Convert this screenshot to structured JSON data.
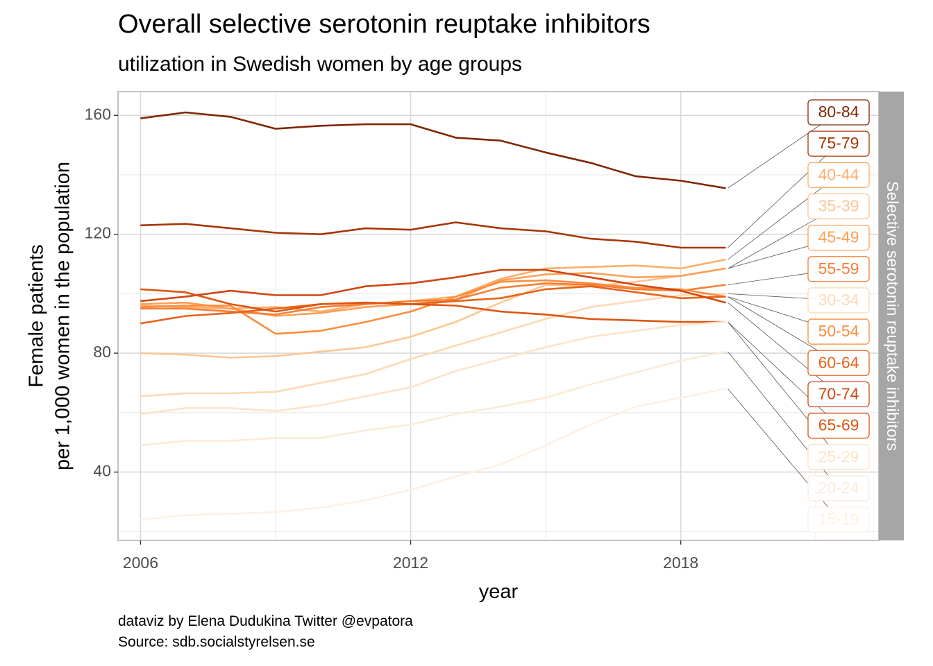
{
  "title": "Overall selective serotonin reuptake inhibitors",
  "subtitle": "utilization in Swedish women by age groups",
  "caption_lines": [
    "dataviz by Elena Dudukina Twitter @evpatora",
    "Source: sdb.socialstyrelsen.se"
  ],
  "colors": {
    "panel_border": "#b3b3b3",
    "grid_major": "#d9d9d9",
    "grid_minor": "#ebebeb",
    "strip": "#a6a6a6",
    "leader": "#555555"
  },
  "chart_data": {
    "type": "line",
    "xlabel": "year",
    "ylabel_lines": [
      "Female patients",
      "per 1,000 women in the population"
    ],
    "facet_label": "Selective serotonin reuptake inhibitors",
    "xlim": [
      2005.5,
      2022.4
    ],
    "ylim": [
      17,
      168
    ],
    "x_ticks": [
      2006,
      2012,
      2018
    ],
    "y_ticks": [
      40,
      80,
      120,
      160
    ],
    "grid": true,
    "x": [
      2006,
      2007,
      2008,
      2009,
      2010,
      2011,
      2012,
      2013,
      2014,
      2015,
      2016,
      2017,
      2018,
      2019
    ],
    "series": [
      {
        "name": "80-84",
        "color": "#7f2704",
        "values": [
          159,
          161,
          159.5,
          155.5,
          156.5,
          157,
          157,
          152.5,
          151.5,
          147.5,
          144,
          139.5,
          138,
          135.5
        ]
      },
      {
        "name": "75-79",
        "color": "#a63603",
        "values": [
          123,
          123.5,
          122,
          120.5,
          120,
          122,
          121.5,
          124,
          122,
          121,
          118.5,
          117.5,
          115.5,
          115.5
        ]
      },
      {
        "name": "40-44",
        "color": "#fdae6b",
        "values": [
          96,
          95.5,
          95,
          95.5,
          94,
          96.5,
          97.5,
          99,
          105,
          108.5,
          109,
          109.5,
          108.5,
          111.5
        ]
      },
      {
        "name": "35-39",
        "color": "#fdc692",
        "values": [
          80,
          79.5,
          78.5,
          79,
          80.5,
          82,
          85.5,
          90.5,
          97,
          103,
          102.5,
          104,
          106,
          108.5
        ]
      },
      {
        "name": "45-49",
        "color": "#fd9f56",
        "values": [
          96.5,
          97,
          95,
          92.5,
          93.5,
          95.5,
          96.5,
          98,
          104.5,
          106.5,
          107,
          105.5,
          106,
          108.5
        ]
      },
      {
        "name": "55-59",
        "color": "#f57e35",
        "values": [
          95,
          95,
          94,
          93,
          95.5,
          96.5,
          97.5,
          98,
          102,
          103.5,
          103,
          101.5,
          101,
          103
        ]
      },
      {
        "name": "30-34",
        "color": "#fdd9b4",
        "values": [
          65.5,
          66.5,
          66.5,
          67,
          70,
          73,
          78,
          82.5,
          87,
          91.5,
          95.5,
          97.5,
          99.5,
          100
        ]
      },
      {
        "name": "50-54",
        "color": "#fd8c3c",
        "values": [
          95.5,
          96,
          96,
          86.5,
          87.5,
          90.5,
          94,
          99,
          104,
          104.5,
          103.5,
          102,
          101.5,
          99
        ]
      },
      {
        "name": "60-64",
        "color": "#e8631a",
        "values": [
          90,
          92.5,
          93.5,
          95,
          96.5,
          97,
          96.5,
          97.5,
          98.5,
          101.5,
          102.5,
          100.5,
          98.5,
          99
        ]
      },
      {
        "name": "70-74",
        "color": "#cf4711",
        "values": [
          97.5,
          99,
          101,
          99.5,
          99.5,
          102.5,
          103.5,
          105.5,
          108,
          108,
          105.5,
          103,
          101,
          97
        ]
      },
      {
        "name": "65-69",
        "color": "#de5510",
        "values": [
          101.5,
          100.5,
          96.5,
          94,
          96.5,
          97,
          96.5,
          96,
          94,
          93,
          91.5,
          91,
          90.5,
          90.5
        ]
      },
      {
        "name": "25-29",
        "color": "#fde3c8",
        "values": [
          59.5,
          61.5,
          61.5,
          60.5,
          62.5,
          65.5,
          68.5,
          74,
          78,
          82,
          85.5,
          87.5,
          89.5,
          90.5
        ]
      },
      {
        "name": "20-24",
        "color": "#feead6",
        "values": [
          49,
          50.5,
          50.5,
          51.5,
          51.5,
          54,
          56,
          59.5,
          62,
          65,
          69.5,
          73.5,
          77.5,
          80.5
        ]
      },
      {
        "name": "15-19",
        "color": "#fff0e2",
        "values": [
          24,
          25.5,
          26,
          26.5,
          28,
          30.5,
          34,
          38.5,
          42.5,
          49,
          56,
          62,
          65,
          68
        ]
      }
    ]
  }
}
